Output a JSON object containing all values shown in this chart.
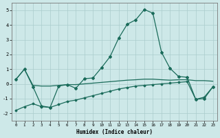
{
  "xlabel": "Humidex (Indice chaleur)",
  "bg_color": "#cde8e8",
  "grid_color": "#aacccc",
  "line_color": "#1a6b5a",
  "xlim": [
    -0.5,
    23.5
  ],
  "ylim": [
    -2.5,
    5.5
  ],
  "xticks": [
    0,
    1,
    2,
    3,
    4,
    5,
    6,
    7,
    8,
    9,
    10,
    11,
    12,
    13,
    14,
    15,
    16,
    17,
    18,
    19,
    20,
    21,
    22,
    23
  ],
  "yticks": [
    -2,
    -1,
    0,
    1,
    2,
    3,
    4,
    5
  ],
  "line1_x": [
    0,
    1,
    2,
    3,
    4,
    5,
    6,
    7,
    8,
    9,
    10,
    11,
    12,
    13,
    14,
    15,
    16,
    17,
    18,
    19,
    20,
    21,
    22,
    23
  ],
  "line1_y": [
    0.3,
    1.0,
    -0.2,
    -1.5,
    -1.6,
    -0.15,
    -0.05,
    -0.3,
    0.35,
    0.4,
    1.1,
    1.85,
    3.1,
    4.05,
    4.35,
    5.05,
    4.8,
    2.15,
    1.05,
    0.5,
    0.45,
    -1.05,
    -1.0,
    -0.2
  ],
  "line2_x": [
    0,
    1,
    2,
    3,
    4,
    5,
    6,
    7,
    8,
    9,
    10,
    11,
    12,
    13,
    14,
    15,
    16,
    17,
    18,
    19,
    20,
    21,
    22,
    23
  ],
  "line2_y": [
    -1.8,
    -1.55,
    -1.35,
    -1.55,
    -1.6,
    -1.4,
    -1.2,
    -1.1,
    -0.95,
    -0.8,
    -0.65,
    -0.5,
    -0.35,
    -0.25,
    -0.15,
    -0.1,
    -0.05,
    0.0,
    0.05,
    0.1,
    0.15,
    -1.05,
    -0.9,
    -0.2
  ],
  "line3_x": [
    0,
    1,
    2,
    3,
    4,
    5,
    6,
    7,
    8,
    9,
    10,
    11,
    12,
    13,
    14,
    15,
    16,
    17,
    18,
    19,
    20,
    21,
    22,
    23
  ],
  "line3_y": [
    0.3,
    1.0,
    -0.1,
    -0.15,
    -0.15,
    -0.1,
    -0.05,
    -0.05,
    0.0,
    0.05,
    0.1,
    0.15,
    0.2,
    0.25,
    0.28,
    0.32,
    0.32,
    0.28,
    0.25,
    0.28,
    0.28,
    0.22,
    0.22,
    0.18
  ]
}
